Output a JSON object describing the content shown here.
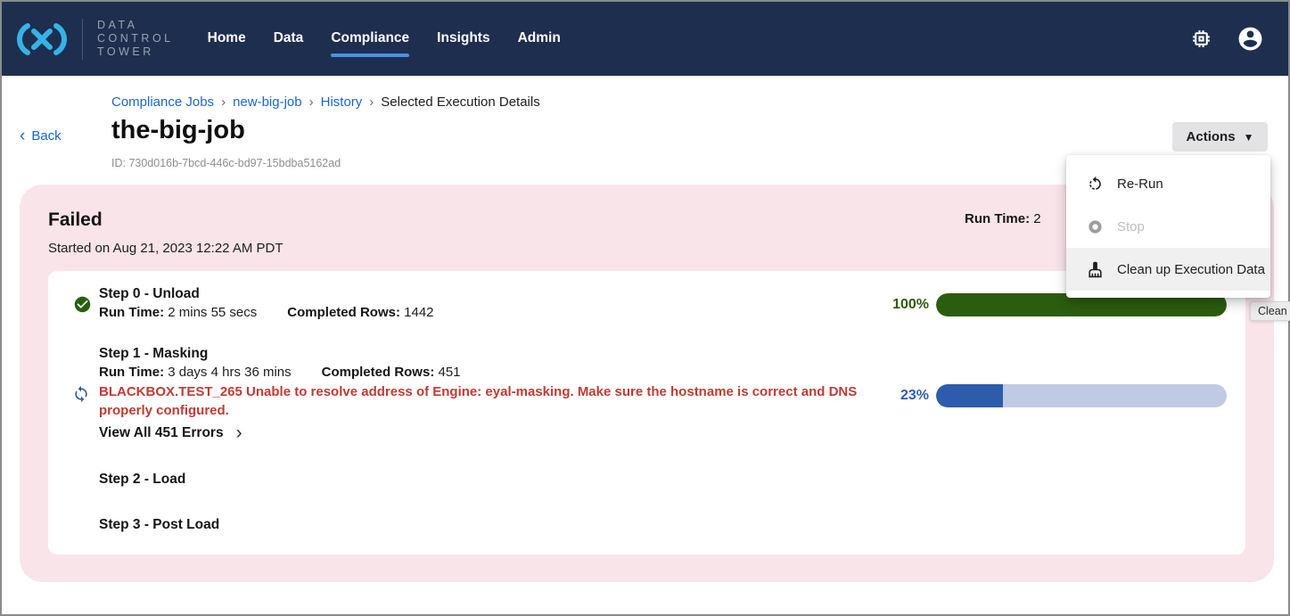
{
  "nav": {
    "brand_lines": [
      "DATA",
      "CONTROL",
      "TOWER"
    ],
    "items": [
      {
        "label": "Home"
      },
      {
        "label": "Data"
      },
      {
        "label": "Compliance"
      },
      {
        "label": "Insights"
      },
      {
        "label": "Admin"
      }
    ]
  },
  "breadcrumb": {
    "links": [
      "Compliance Jobs",
      "new-big-job",
      "History"
    ],
    "current": "Selected Execution Details",
    "separator": "›"
  },
  "header": {
    "back_label": "Back",
    "title": "the-big-job",
    "id_line": "ID: 730d016b-7bcd-446c-bd97-15bdba5162ad",
    "actions_label": "Actions"
  },
  "actions_menu": {
    "items": [
      {
        "label": "Re-Run"
      },
      {
        "label": "Stop"
      },
      {
        "label": "Clean up Execution Data"
      }
    ]
  },
  "status_panel": {
    "status": "Failed",
    "started": "Started on Aug 21, 2023 12:22 AM PDT",
    "run_time_label": "Run Time:",
    "run_time_value": "2"
  },
  "labels": {
    "run_time": "Run Time:",
    "completed_rows": "Completed Rows:"
  },
  "steps": [
    {
      "title": "Step 0 - Unload",
      "run_time": "2 mins 55 secs",
      "completed_rows": "1442",
      "progress_label": "100%",
      "progress": 100,
      "state": "success"
    },
    {
      "title": "Step 1 - Masking",
      "run_time": "3 days 4 hrs 36 mins",
      "completed_rows": "451",
      "error": "BLACKBOX.TEST_265 Unable to resolve address of Engine: eyal-masking. Make sure the hostname is correct and DNS properly configured.",
      "view_errors_label": "View All 451 Errors",
      "progress_label": "23%",
      "progress": 23,
      "state": "running"
    },
    {
      "title": "Step 2 - Load"
    },
    {
      "title": "Step 3 - Post Load"
    }
  ],
  "tooltip": {
    "text": "Clean up Execution Data"
  },
  "colors": {
    "nav_background": "#1e2e4e",
    "logo_blue": "#36b3e6",
    "active_tab_underline": "#4e8fe3",
    "link_blue": "#1a66d0",
    "status_panel_pink": "#f9e4e9",
    "progress_green": "#2b5d0e",
    "progress_blue": "#2e5cac",
    "progress_track_blue": "#c0cbe3",
    "error_red": "#c13b33"
  }
}
